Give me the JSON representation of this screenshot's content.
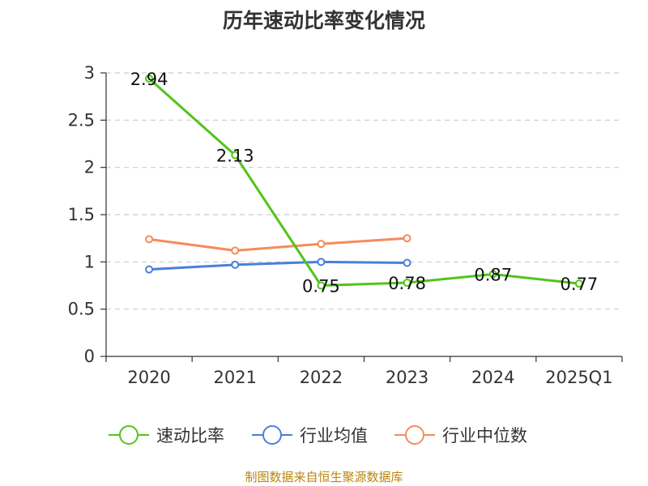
{
  "chart_data": {
    "type": "line",
    "title": "历年速动比率变化情况",
    "categories": [
      "2020",
      "2021",
      "2022",
      "2023",
      "2024",
      "2025Q1"
    ],
    "ylim": [
      0,
      3
    ],
    "yticks": [
      "0",
      "0.5",
      "1",
      "1.5",
      "2",
      "2.5",
      "3"
    ],
    "grid": true,
    "legend_position": "bottom",
    "series": [
      {
        "name": "速动比率",
        "color": "#52c41a",
        "values": [
          2.94,
          2.13,
          0.75,
          0.78,
          0.87,
          0.77
        ],
        "labels": [
          "2.94",
          "2.13",
          "0.75",
          "0.78",
          "0.87",
          "0.77"
        ]
      },
      {
        "name": "行业均值",
        "color": "#4a7fdc",
        "values": [
          0.92,
          0.97,
          1.0,
          0.99,
          null,
          null
        ]
      },
      {
        "name": "行业中位数",
        "color": "#f58c5a",
        "values": [
          1.24,
          1.12,
          1.19,
          1.25,
          null,
          null
        ]
      }
    ]
  },
  "source": "制图数据来自恒生聚源数据库"
}
